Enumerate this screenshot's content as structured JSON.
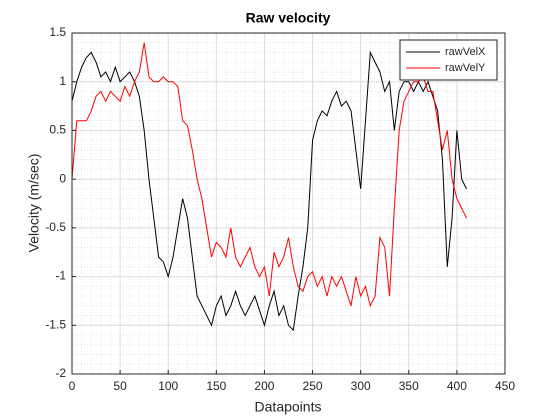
{
  "chart_data": {
    "type": "line",
    "title": "Raw velocity",
    "x_label": "Datapoints",
    "y_label": "Velocity (m/sec)",
    "x": [
      0,
      5,
      10,
      15,
      20,
      25,
      30,
      35,
      40,
      45,
      50,
      55,
      60,
      65,
      70,
      75,
      80,
      85,
      90,
      95,
      100,
      105,
      110,
      115,
      120,
      125,
      130,
      135,
      140,
      145,
      150,
      155,
      160,
      165,
      170,
      175,
      180,
      185,
      190,
      195,
      200,
      205,
      210,
      215,
      220,
      225,
      230,
      235,
      240,
      245,
      250,
      255,
      260,
      265,
      270,
      275,
      280,
      285,
      290,
      295,
      300,
      305,
      310,
      315,
      320,
      325,
      330,
      335,
      340,
      345,
      350,
      355,
      360,
      365,
      370,
      375,
      380,
      385,
      390,
      395,
      400,
      405,
      410
    ],
    "series": [
      {
        "name": "rawVelX",
        "color": "#000000",
        "values": [
          0.8,
          1.0,
          1.15,
          1.25,
          1.3,
          1.2,
          1.05,
          1.1,
          1.0,
          1.15,
          1.0,
          1.05,
          1.1,
          1.0,
          0.85,
          0.5,
          0.0,
          -0.4,
          -0.8,
          -0.85,
          -1.0,
          -0.8,
          -0.5,
          -0.2,
          -0.4,
          -0.8,
          -1.2,
          -1.3,
          -1.4,
          -1.5,
          -1.3,
          -1.2,
          -1.4,
          -1.3,
          -1.15,
          -1.3,
          -1.4,
          -1.3,
          -1.2,
          -1.35,
          -1.5,
          -1.3,
          -1.15,
          -1.4,
          -1.3,
          -1.5,
          -1.55,
          -1.2,
          -0.9,
          -0.5,
          0.4,
          0.6,
          0.7,
          0.65,
          0.8,
          0.9,
          0.75,
          0.8,
          0.7,
          0.3,
          -0.1,
          0.6,
          1.3,
          1.2,
          1.1,
          0.9,
          1.0,
          0.5,
          0.9,
          1.0,
          1.0,
          0.9,
          1.0,
          0.9,
          1.0,
          0.85,
          0.7,
          0.2,
          -0.9,
          -0.4,
          0.5,
          0.0,
          -0.1
        ]
      },
      {
        "name": "rawVelY",
        "color": "#ff0000",
        "values": [
          0.0,
          0.6,
          0.6,
          0.6,
          0.7,
          0.85,
          0.9,
          0.8,
          0.9,
          0.85,
          0.8,
          0.95,
          0.85,
          1.0,
          1.1,
          1.4,
          1.05,
          1.0,
          1.0,
          1.05,
          1.0,
          1.0,
          0.95,
          0.6,
          0.55,
          0.3,
          0.0,
          -0.2,
          -0.5,
          -0.8,
          -0.65,
          -0.7,
          -0.8,
          -0.5,
          -0.8,
          -0.9,
          -0.8,
          -0.7,
          -0.9,
          -1.0,
          -0.9,
          -1.2,
          -0.75,
          -0.9,
          -0.8,
          -0.6,
          -0.9,
          -1.1,
          -1.15,
          -1.0,
          -0.95,
          -1.1,
          -1.0,
          -1.2,
          -1.0,
          -1.1,
          -1.0,
          -1.15,
          -1.3,
          -1.0,
          -1.2,
          -1.1,
          -1.3,
          -1.2,
          -0.6,
          -0.7,
          -1.2,
          -0.3,
          0.5,
          0.8,
          0.9,
          1.0,
          1.0,
          1.05,
          0.9,
          0.9,
          0.6,
          0.3,
          0.5,
          0.0,
          -0.2,
          -0.3,
          -0.4
        ]
      }
    ],
    "xlim": [
      0,
      450
    ],
    "xticks": [
      0,
      50,
      100,
      150,
      200,
      250,
      300,
      350,
      400,
      450
    ],
    "ylim": [
      -2,
      1.5
    ],
    "yticks": [
      -2,
      -1.5,
      -1,
      -0.5,
      0,
      0.5,
      1,
      1.5
    ],
    "grid": true,
    "minor_grid": true,
    "legend": "northeast"
  }
}
